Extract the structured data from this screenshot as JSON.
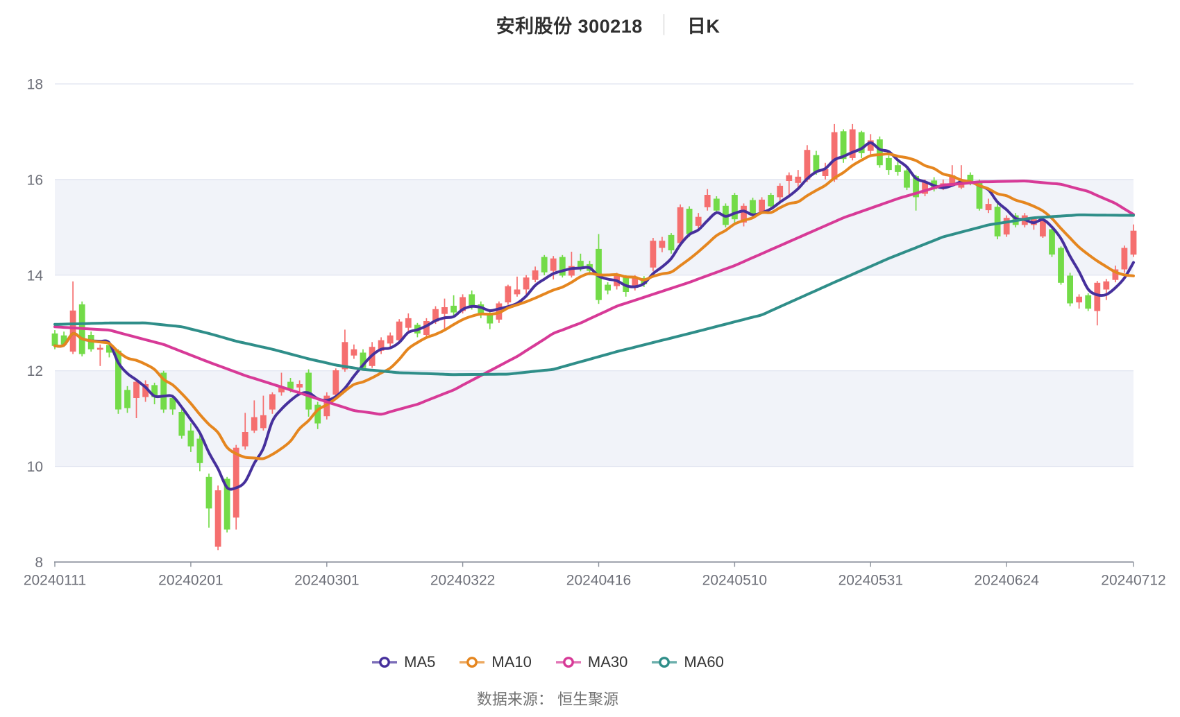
{
  "title": {
    "text": "安利股份 300218",
    "separator": "│",
    "period": "日K"
  },
  "footer": {
    "label": "数据来源：",
    "source": "恒生聚源"
  },
  "legend": [
    {
      "label": "MA5",
      "color": "#46309C"
    },
    {
      "label": "MA10",
      "color": "#E5861F"
    },
    {
      "label": "MA30",
      "color": "#D73A97"
    },
    {
      "label": "MA60",
      "color": "#2F8E89"
    }
  ],
  "chart_data": {
    "type": "candlestick",
    "title": "安利股份 300218 日K",
    "ylim": [
      8,
      18
    ],
    "y_ticks": [
      8,
      10,
      12,
      14,
      16,
      18
    ],
    "x_ticks": [
      {
        "label": "20240111",
        "index": 0
      },
      {
        "label": "20240201",
        "index": 15
      },
      {
        "label": "20240301",
        "index": 30
      },
      {
        "label": "20240322",
        "index": 45
      },
      {
        "label": "20240416",
        "index": 60
      },
      {
        "label": "20240510",
        "index": 75
      },
      {
        "label": "20240531",
        "index": 90
      },
      {
        "label": "20240624",
        "index": 105
      },
      {
        "label": "20240712",
        "index": 119
      }
    ],
    "colors": {
      "up": "#F56F6F",
      "down": "#73DB48",
      "band": "#F1F3F9",
      "grid": "#DFE3EF",
      "axis": "#8C929C",
      "label": "#6E7079",
      "ma5": "#46309C",
      "ma10": "#E5861F",
      "ma30": "#D73A97",
      "ma60": "#2F8E89"
    },
    "legend_position": "bottom",
    "grid": true,
    "dates": [
      "20240111",
      "20240112",
      "20240115",
      "20240116",
      "20240117",
      "20240118",
      "20240119",
      "20240122",
      "20240123",
      "20240124",
      "20240125",
      "20240126",
      "20240129",
      "20240130",
      "20240131",
      "20240201",
      "20240202",
      "20240205",
      "20240206",
      "20240207",
      "20240208",
      "20240219",
      "20240220",
      "20240221",
      "20240222",
      "20240223",
      "20240226",
      "20240227",
      "20240228",
      "20240229",
      "20240301",
      "20240304",
      "20240305",
      "20240306",
      "20240307",
      "20240308",
      "20240311",
      "20240312",
      "20240313",
      "20240314",
      "20240315",
      "20240318",
      "20240319",
      "20240320",
      "20240321",
      "20240322",
      "20240325",
      "20240326",
      "20240327",
      "20240328",
      "20240329",
      "20240401",
      "20240402",
      "20240403",
      "20240408",
      "20240409",
      "20240410",
      "20240411",
      "20240412",
      "20240415",
      "20240416",
      "20240417",
      "20240418",
      "20240419",
      "20240422",
      "20240423",
      "20240424",
      "20240425",
      "20240426",
      "20240429",
      "20240430",
      "20240506",
      "20240507",
      "20240508",
      "20240509",
      "20240510",
      "20240513",
      "20240514",
      "20240515",
      "20240516",
      "20240517",
      "20240520",
      "20240521",
      "20240522",
      "20240523",
      "20240524",
      "20240527",
      "20240528",
      "20240529",
      "20240530",
      "20240531",
      "20240603",
      "20240604",
      "20240605",
      "20240606",
      "20240607",
      "20240611",
      "20240612",
      "20240613",
      "20240614",
      "20240617",
      "20240618",
      "20240619",
      "20240620",
      "20240621",
      "20240624",
      "20240625",
      "20240626",
      "20240627",
      "20240628",
      "20240701",
      "20240702",
      "20240703",
      "20240704",
      "20240705",
      "20240708",
      "20240709",
      "20240710",
      "20240711",
      "20240712"
    ],
    "candles_format": [
      "open",
      "close",
      "low",
      "high"
    ],
    "candles": [
      [
        12.78,
        12.52,
        12.45,
        12.85
      ],
      [
        12.74,
        12.55,
        12.5,
        12.82
      ],
      [
        12.4,
        13.26,
        12.35,
        13.87
      ],
      [
        13.39,
        12.35,
        12.3,
        13.45
      ],
      [
        12.75,
        12.45,
        12.4,
        12.82
      ],
      [
        12.44,
        12.48,
        12.1,
        12.55
      ],
      [
        12.54,
        12.38,
        12.28,
        12.6
      ],
      [
        12.42,
        11.19,
        11.1,
        12.45
      ],
      [
        11.6,
        11.22,
        11.12,
        11.68
      ],
      [
        11.43,
        11.77,
        11.01,
        11.82
      ],
      [
        11.45,
        11.72,
        11.35,
        11.8
      ],
      [
        11.7,
        11.45,
        11.3,
        11.75
      ],
      [
        11.96,
        11.19,
        11.12,
        12.0
      ],
      [
        11.43,
        11.19,
        11.08,
        11.5
      ],
      [
        11.14,
        10.64,
        10.58,
        11.2
      ],
      [
        10.75,
        10.42,
        10.3,
        10.9
      ],
      [
        10.58,
        10.07,
        9.9,
        10.65
      ],
      [
        9.78,
        9.12,
        8.72,
        9.85
      ],
      [
        8.32,
        9.5,
        8.25,
        9.6
      ],
      [
        9.74,
        8.68,
        8.62,
        9.78
      ],
      [
        8.93,
        10.39,
        8.68,
        10.45
      ],
      [
        10.42,
        10.72,
        10.35,
        11.12
      ],
      [
        10.75,
        11.03,
        10.7,
        11.38
      ],
      [
        10.8,
        11.07,
        10.75,
        11.48
      ],
      [
        11.19,
        11.51,
        11.1,
        11.55
      ],
      [
        11.55,
        11.65,
        11.48,
        11.96
      ],
      [
        11.77,
        11.62,
        11.55,
        11.85
      ],
      [
        11.65,
        11.72,
        11.5,
        11.8
      ],
      [
        11.96,
        11.19,
        11.04,
        12.03
      ],
      [
        11.29,
        10.9,
        10.78,
        11.35
      ],
      [
        11.05,
        11.48,
        10.98,
        11.55
      ],
      [
        11.5,
        12.01,
        11.45,
        12.05
      ],
      [
        12.03,
        12.6,
        11.98,
        12.86
      ],
      [
        12.32,
        12.45,
        12.25,
        12.55
      ],
      [
        12.38,
        12.06,
        12.0,
        12.45
      ],
      [
        12.1,
        12.5,
        12.06,
        12.6
      ],
      [
        12.42,
        12.64,
        12.35,
        12.7
      ],
      [
        12.57,
        12.74,
        12.5,
        12.8
      ],
      [
        12.64,
        13.03,
        12.6,
        13.08
      ],
      [
        12.9,
        13.1,
        12.83,
        13.2
      ],
      [
        12.96,
        12.78,
        12.7,
        13.0
      ],
      [
        12.75,
        13.04,
        12.7,
        13.1
      ],
      [
        13.03,
        13.29,
        12.98,
        13.35
      ],
      [
        13.19,
        13.33,
        12.83,
        13.51
      ],
      [
        13.36,
        13.22,
        13.15,
        13.58
      ],
      [
        13.25,
        13.54,
        13.2,
        13.6
      ],
      [
        13.6,
        13.35,
        13.28,
        13.68
      ],
      [
        13.39,
        13.19,
        13.1,
        13.45
      ],
      [
        13.2,
        12.99,
        12.87,
        13.25
      ],
      [
        13.07,
        13.41,
        13.0,
        13.45
      ],
      [
        13.43,
        13.77,
        13.38,
        13.8
      ],
      [
        13.6,
        13.7,
        13.55,
        13.97
      ],
      [
        13.7,
        13.95,
        13.6,
        14.0
      ],
      [
        13.9,
        14.1,
        13.85,
        14.18
      ],
      [
        14.38,
        14.06,
        14.0,
        14.42
      ],
      [
        14.09,
        14.35,
        13.91,
        14.4
      ],
      [
        14.38,
        13.99,
        13.95,
        14.42
      ],
      [
        13.99,
        14.19,
        13.95,
        14.49
      ],
      [
        14.3,
        14.15,
        14.08,
        14.45
      ],
      [
        14.23,
        14.09,
        14.0,
        14.3
      ],
      [
        14.55,
        13.48,
        13.4,
        14.86
      ],
      [
        13.8,
        13.68,
        13.6,
        13.85
      ],
      [
        13.77,
        14.01,
        13.7,
        14.05
      ],
      [
        13.97,
        13.65,
        13.55,
        14.0
      ],
      [
        13.74,
        13.97,
        13.68,
        14.0
      ],
      [
        13.94,
        13.81,
        13.75,
        13.98
      ],
      [
        14.16,
        14.72,
        14.08,
        14.78
      ],
      [
        14.57,
        14.72,
        14.48,
        14.8
      ],
      [
        14.84,
        14.52,
        14.45,
        14.88
      ],
      [
        14.67,
        15.42,
        14.6,
        15.48
      ],
      [
        15.39,
        14.86,
        14.8,
        15.44
      ],
      [
        15.03,
        15.22,
        14.95,
        15.3
      ],
      [
        15.42,
        15.68,
        15.35,
        15.8
      ],
      [
        15.6,
        15.35,
        15.28,
        15.65
      ],
      [
        15.45,
        15.05,
        15.0,
        15.5
      ],
      [
        15.68,
        15.17,
        15.1,
        15.72
      ],
      [
        15.1,
        15.45,
        15.02,
        15.5
      ],
      [
        15.57,
        15.29,
        15.22,
        15.62
      ],
      [
        15.32,
        15.58,
        15.28,
        15.63
      ],
      [
        15.68,
        15.44,
        15.38,
        15.72
      ],
      [
        15.63,
        15.87,
        15.55,
        15.92
      ],
      [
        15.97,
        16.09,
        15.68,
        16.15
      ],
      [
        15.93,
        16.06,
        15.85,
        16.2
      ],
      [
        16.0,
        16.62,
        15.95,
        16.72
      ],
      [
        16.51,
        16.16,
        16.1,
        16.6
      ],
      [
        16.07,
        16.22,
        16.0,
        16.35
      ],
      [
        16.0,
        16.99,
        15.95,
        17.16
      ],
      [
        17.01,
        16.43,
        16.35,
        17.05
      ],
      [
        16.45,
        17.05,
        16.4,
        17.16
      ],
      [
        16.99,
        16.55,
        16.45,
        17.02
      ],
      [
        16.6,
        16.82,
        16.5,
        16.95
      ],
      [
        16.84,
        16.3,
        16.25,
        16.9
      ],
      [
        16.45,
        16.2,
        16.1,
        16.5
      ],
      [
        16.3,
        16.16,
        16.08,
        16.38
      ],
      [
        16.19,
        15.83,
        15.78,
        16.25
      ],
      [
        16.07,
        15.63,
        15.35,
        16.1
      ],
      [
        15.7,
        15.95,
        15.65,
        16.0
      ],
      [
        15.98,
        15.8,
        15.75,
        16.05
      ],
      [
        15.82,
        15.92,
        15.78,
        16.0
      ],
      [
        15.9,
        16.09,
        15.85,
        16.3
      ],
      [
        15.83,
        16.0,
        15.8,
        16.3
      ],
      [
        16.1,
        15.95,
        15.88,
        16.15
      ],
      [
        15.94,
        15.39,
        15.35,
        16.0
      ],
      [
        15.36,
        15.49,
        15.3,
        15.6
      ],
      [
        15.43,
        14.81,
        14.75,
        15.5
      ],
      [
        14.85,
        15.2,
        14.8,
        15.25
      ],
      [
        15.25,
        15.05,
        15.0,
        15.3
      ],
      [
        15.05,
        15.25,
        15.0,
        15.3
      ],
      [
        15.05,
        15.17,
        14.95,
        15.2
      ],
      [
        14.81,
        15.13,
        14.78,
        15.17
      ],
      [
        14.96,
        14.43,
        14.38,
        15.0
      ],
      [
        14.57,
        13.84,
        13.8,
        14.6
      ],
      [
        13.99,
        13.41,
        13.35,
        14.05
      ],
      [
        13.43,
        13.55,
        13.3,
        13.6
      ],
      [
        13.58,
        13.3,
        13.25,
        13.62
      ],
      [
        13.25,
        13.84,
        12.95,
        13.88
      ],
      [
        13.7,
        13.87,
        13.48,
        13.92
      ],
      [
        13.9,
        14.12,
        13.85,
        14.2
      ],
      [
        14.12,
        14.57,
        14.05,
        14.62
      ],
      [
        14.43,
        14.93,
        14.38,
        15.06
      ]
    ],
    "series": [
      {
        "name": "MA5",
        "window": 5,
        "source": "computed_from_closes"
      },
      {
        "name": "MA10",
        "window": 10,
        "source": "computed_from_closes"
      },
      {
        "name": "MA30",
        "points": [
          [
            0,
            12.92
          ],
          [
            6,
            12.85
          ],
          [
            12,
            12.55
          ],
          [
            17,
            12.18
          ],
          [
            21,
            11.9
          ],
          [
            26,
            11.6
          ],
          [
            30,
            11.35
          ],
          [
            33,
            11.17
          ],
          [
            36,
            11.09
          ],
          [
            40,
            11.3
          ],
          [
            44,
            11.6
          ],
          [
            48,
            12.0
          ],
          [
            51,
            12.3
          ],
          [
            55,
            12.78
          ],
          [
            58,
            13.0
          ],
          [
            62,
            13.35
          ],
          [
            66,
            13.6
          ],
          [
            70,
            13.85
          ],
          [
            75,
            14.2
          ],
          [
            81,
            14.7
          ],
          [
            87,
            15.2
          ],
          [
            93,
            15.6
          ],
          [
            98,
            15.88
          ],
          [
            102,
            15.95
          ],
          [
            107,
            15.97
          ],
          [
            111,
            15.9
          ],
          [
            114,
            15.75
          ],
          [
            117,
            15.5
          ],
          [
            119,
            15.27
          ]
        ]
      },
      {
        "name": "MA60",
        "points": [
          [
            0,
            12.97
          ],
          [
            6,
            13.0
          ],
          [
            10,
            13.0
          ],
          [
            14,
            12.92
          ],
          [
            17,
            12.78
          ],
          [
            20,
            12.62
          ],
          [
            24,
            12.45
          ],
          [
            28,
            12.25
          ],
          [
            31,
            12.12
          ],
          [
            34,
            12.03
          ],
          [
            38,
            11.96
          ],
          [
            44,
            11.92
          ],
          [
            50,
            11.93
          ],
          [
            55,
            12.03
          ],
          [
            62,
            12.4
          ],
          [
            70,
            12.78
          ],
          [
            78,
            13.17
          ],
          [
            86,
            13.85
          ],
          [
            92,
            14.35
          ],
          [
            98,
            14.8
          ],
          [
            103,
            15.05
          ],
          [
            108,
            15.2
          ],
          [
            113,
            15.26
          ],
          [
            119,
            15.25
          ]
        ]
      }
    ]
  }
}
